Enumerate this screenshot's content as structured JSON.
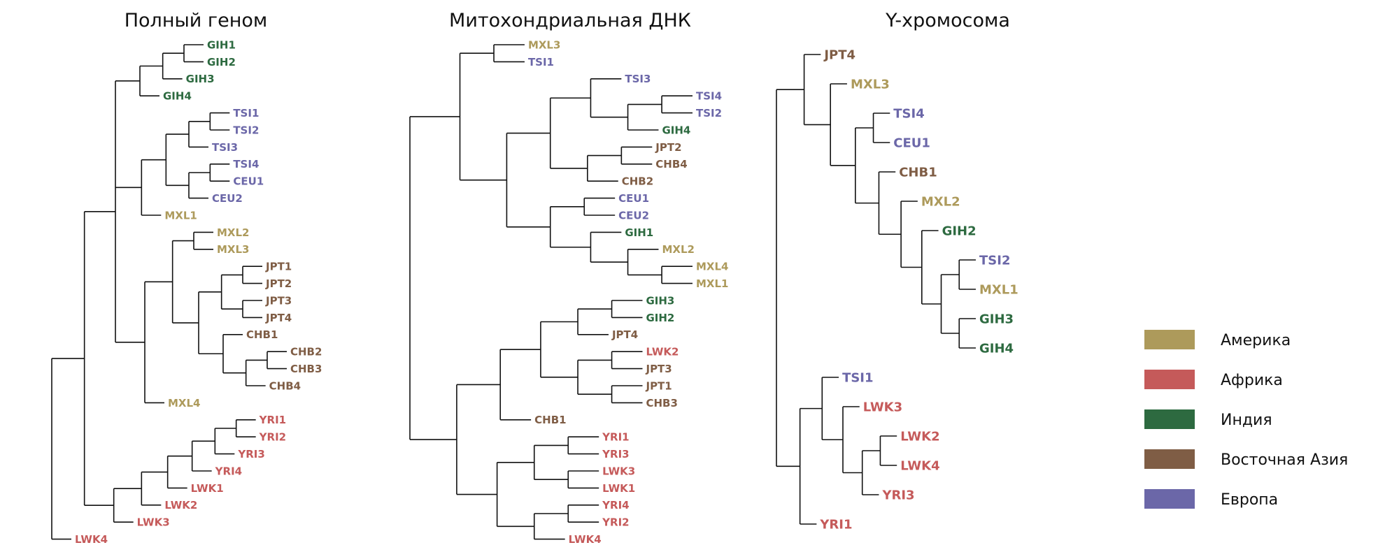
{
  "colors": {
    "america": "#ad9a5b",
    "africa": "#c55a5a",
    "india": "#2d6a40",
    "east_asia": "#7f5d45",
    "europe": "#6b67a8"
  },
  "panels": [
    {
      "title": "Полный геном",
      "tree": [
        [
          [
            [
              [
                [
                  "GIH1",
                  "GIH2"
                ],
                "GIH3"
              ],
              "GIH4"
            ],
            [
              [
                [
                  [
                    "TSI1",
                    "TSI2"
                  ],
                  "TSI3"
                ],
                [
                  [
                    "TSI4",
                    "CEU1"
                  ],
                  "CEU2"
                ]
              ],
              "MXL1"
            ],
            [
              [
                [
                  "MXL2",
                  "MXL3"
                ],
                [
                  [
                    [
                      "JPT1",
                      "JPT2"
                    ],
                    [
                      "JPT3",
                      "JPT4"
                    ]
                  ],
                  [
                    "CHB1",
                    [
                      [
                        "CHB2",
                        "CHB3"
                      ],
                      "CHB4"
                    ]
                  ]
                ]
              ],
              "MXL4"
            ]
          ],
          [
            [
              [
                [
                  [
                    [
                      "YRI1",
                      "YRI2"
                    ],
                    "YRI3"
                  ],
                  "YRI4"
                ],
                "LWK1"
              ],
              "LWK2"
            ],
            "LWK3"
          ]
        ],
        "LWK4"
      ]
    },
    {
      "title": "Митохондриальная ДНК",
      "tree": [
        [
          [
            "MXL3",
            "TSI1"
          ],
          [
            [
              [
                "TSI3",
                [
                  [
                    "TSI4",
                    "TSI2"
                  ],
                  "GIH4"
                ]
              ],
              [
                [
                  "JPT2",
                  "CHB4"
                ],
                "CHB2"
              ]
            ],
            [
              [
                "CEU1",
                "CEU2"
              ],
              [
                "GIH1",
                [
                  "MXL2",
                  [
                    "MXL4",
                    "MXL1"
                  ]
                ]
              ]
            ]
          ]
        ],
        [
          [
            [
              [
                [
                  "GIH3",
                  "GIH2"
                ],
                "JPT4"
              ],
              [
                [
                  "LWK2",
                  "JPT3"
                ],
                [
                  "JPT1",
                  "CHB3"
                ]
              ]
            ],
            "CHB1"
          ],
          [
            [
              [
                "YRI1",
                "YRI3"
              ],
              [
                "LWK3",
                "LWK1"
              ]
            ],
            [
              [
                "YRI4",
                "YRI2"
              ],
              "LWK4"
            ]
          ]
        ]
      ]
    },
    {
      "title": "Y-хромосома",
      "tree": [
        [
          "JPT4",
          [
            "MXL3",
            [
              [
                "TSI4",
                "CEU1"
              ],
              [
                "CHB1",
                [
                  "MXL2",
                  [
                    "GIH2",
                    [
                      [
                        "TSI2",
                        "MXL1"
                      ],
                      [
                        "GIH3",
                        "GIH4"
                      ]
                    ]
                  ]
                ]
              ]
            ]
          ]
        ],
        [
          [
            "TSI1",
            [
              "LWK3",
              [
                [
                  "LWK2",
                  "LWK4"
                ],
                "YRI3"
              ]
            ]
          ],
          "YRI1"
        ]
      ]
    }
  ],
  "legend": [
    {
      "label": "Америка",
      "color": "#ad9a5b"
    },
    {
      "label": "Африка",
      "color": "#c55a5a"
    },
    {
      "label": "Индия",
      "color": "#2d6a40"
    },
    {
      "label": "Восточная Азия",
      "color": "#7f5d45"
    },
    {
      "label": "Европа",
      "color": "#6b67a8"
    }
  ]
}
